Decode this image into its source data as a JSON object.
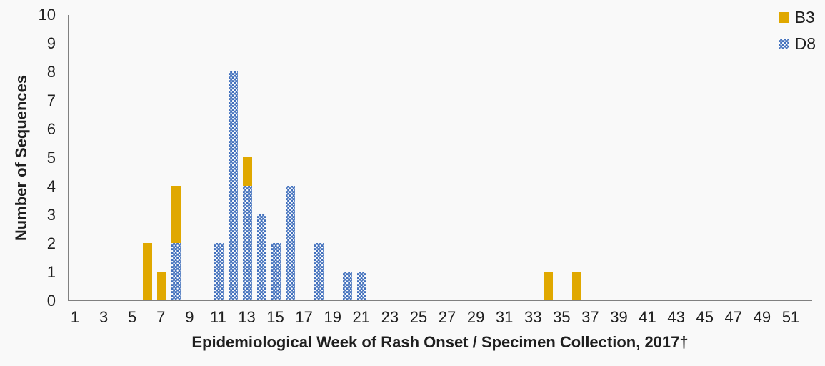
{
  "chart_data": {
    "type": "bar",
    "stacked": true,
    "title": "",
    "xlabel": "Epidemiological Week of Rash Onset / Specimen Collection, 2017†",
    "ylabel": "Number of Sequences",
    "grid": false,
    "legend_position": "top-right",
    "x_axis": {
      "week_min": 1,
      "week_max": 52,
      "tick_labels": [
        1,
        3,
        5,
        7,
        9,
        11,
        13,
        15,
        17,
        19,
        21,
        23,
        25,
        27,
        29,
        31,
        33,
        35,
        37,
        39,
        41,
        43,
        45,
        47,
        49,
        51
      ]
    },
    "y_axis": {
      "min": 0,
      "max": 10,
      "tick_labels": [
        0,
        1,
        2,
        3,
        4,
        5,
        6,
        7,
        8,
        9,
        10
      ]
    },
    "stack_order_bottom_to_top": [
      "D8",
      "B3"
    ],
    "series": [
      {
        "name": "B3",
        "color": "#e0a800",
        "pattern": "solid",
        "points": [
          {
            "week": 6,
            "value": 2
          },
          {
            "week": 7,
            "value": 1
          },
          {
            "week": 8,
            "value": 2
          },
          {
            "week": 13,
            "value": 1
          },
          {
            "week": 34,
            "value": 1
          },
          {
            "week": 36,
            "value": 1
          }
        ]
      },
      {
        "name": "D8",
        "color": "#4270bc",
        "pattern": "white-dots",
        "points": [
          {
            "week": 8,
            "value": 2
          },
          {
            "week": 11,
            "value": 2
          },
          {
            "week": 12,
            "value": 8
          },
          {
            "week": 13,
            "value": 4
          },
          {
            "week": 14,
            "value": 3
          },
          {
            "week": 15,
            "value": 2
          },
          {
            "week": 16,
            "value": 4
          },
          {
            "week": 18,
            "value": 2
          },
          {
            "week": 20,
            "value": 1
          },
          {
            "week": 21,
            "value": 1
          }
        ]
      }
    ],
    "axis_line_color": "#808080",
    "background_color": "#f9f9f9"
  }
}
